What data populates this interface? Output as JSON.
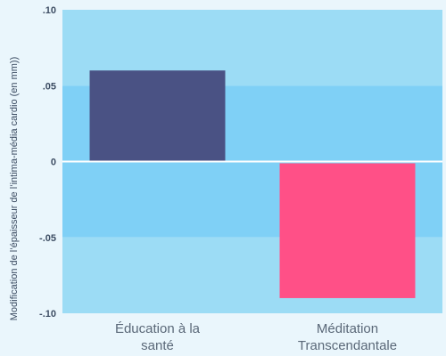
{
  "chart_data": {
    "type": "bar",
    "categories": [
      [
        "Éducation à la",
        "santé"
      ],
      [
        "Méditation",
        "Transcendantale"
      ]
    ],
    "values": [
      0.06,
      -0.09
    ],
    "bar_colors": [
      "#4a5284",
      "#ff5087"
    ],
    "ylabel": "Modification de l’épaisseur de l’intima-média cardio (en mm))",
    "ylim": [
      -0.1,
      0.1
    ],
    "yticks": [
      ".10",
      ".05",
      "0",
      "-.05",
      "-.10"
    ],
    "ytick_values": [
      0.1,
      0.05,
      0,
      -0.05,
      -0.1
    ],
    "band_colors": [
      "#9cdcf5",
      "#7fd0f6",
      "#7fd0f6",
      "#9cdcf5"
    ],
    "zero_line_color": "#ffffff",
    "grid": false
  }
}
